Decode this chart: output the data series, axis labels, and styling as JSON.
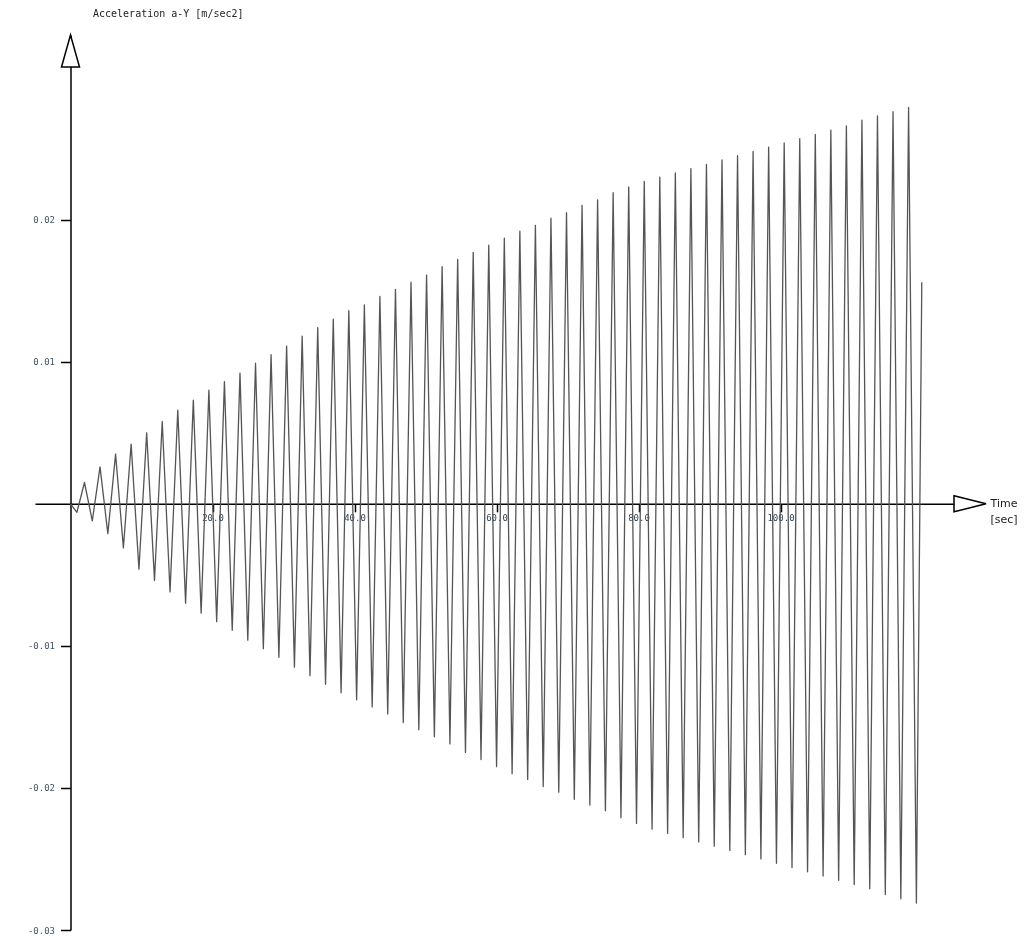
{
  "chart_data": {
    "type": "line",
    "xlabel": "Time [sec]",
    "ylabel": "Acceleration a-Y [m/sec2]",
    "color": "#555555",
    "xlim": [
      -5,
      125
    ],
    "ylim": [
      -0.03,
      0.033
    ],
    "xticks": [
      {
        "value": 20,
        "label": "20.0"
      },
      {
        "value": 40,
        "label": "40.0"
      },
      {
        "value": 60,
        "label": "60.0"
      },
      {
        "value": 80,
        "label": "80.0"
      },
      {
        "value": 100,
        "label": "100.0"
      }
    ],
    "yticks": [
      -0.03,
      -0.02,
      -0.01,
      0.01,
      0.02
    ],
    "x": [
      0,
      0.9,
      1.97,
      3.07,
      4.16,
      5.26,
      6.35,
      7.45,
      8.54,
      9.64,
      10.73,
      11.83,
      12.92,
      14.02,
      15.11,
      16.21,
      17.3,
      18.4,
      19.49,
      20.59,
      21.68,
      22.78,
      23.87,
      24.97,
      26.06,
      27.16,
      28.25,
      29.35,
      30.44,
      31.54,
      32.63,
      33.73,
      34.82,
      35.92,
      37.01,
      38.11,
      39.2,
      40.3,
      41.39,
      42.49,
      43.58,
      44.68,
      45.77,
      46.87,
      47.96,
      49.06,
      50.15,
      51.25,
      52.34,
      53.44,
      54.53,
      55.63,
      56.72,
      57.82,
      58.91,
      60.01,
      61.1,
      62.2,
      63.29,
      64.39,
      65.48,
      66.58,
      67.67,
      68.77,
      69.86,
      70.96,
      72.05,
      73.15,
      74.24,
      75.34,
      76.43,
      77.53,
      78.62,
      79.72,
      80.81,
      81.91,
      83.0,
      84.1,
      85.19,
      86.29,
      87.38,
      88.48,
      89.57,
      90.67,
      91.76,
      92.86,
      93.95,
      95.05,
      96.14,
      97.24,
      98.33,
      99.43,
      100.52,
      101.62,
      102.71,
      103.81,
      104.9,
      106.0,
      107.09,
      108.19,
      109.28,
      110.38,
      111.47,
      112.57,
      113.66,
      114.76,
      115.85,
      116.95,
      118.04,
      119.14,
      119.9
    ],
    "values": [
      0,
      -0.0006,
      0.0015,
      -0.0012,
      0.0026,
      -0.0021,
      0.0035,
      -0.0031,
      0.0042,
      -0.0046,
      0.005,
      -0.0054,
      0.0058,
      -0.0062,
      0.0066,
      -0.007,
      0.0073,
      -0.0077,
      0.008,
      -0.0083,
      0.0086,
      -0.0089,
      0.0092,
      -0.0096,
      0.0099,
      -0.0102,
      0.0105,
      -0.0108,
      0.0111,
      -0.0115,
      0.0118,
      -0.0121,
      0.0124,
      -0.0127,
      0.013,
      -0.0133,
      0.0136,
      -0.0138,
      0.014,
      -0.0143,
      0.0146,
      -0.0148,
      0.0151,
      -0.0154,
      0.0156,
      -0.0159,
      0.0161,
      -0.0164,
      0.0167,
      -0.0169,
      0.0172,
      -0.0175,
      0.0177,
      -0.018,
      0.0182,
      -0.0185,
      0.0187,
      -0.019,
      0.0192,
      -0.0194,
      0.0196,
      -0.0199,
      0.0201,
      -0.0203,
      0.0205,
      -0.0208,
      0.021,
      -0.0212,
      0.0214,
      -0.0216,
      0.0219,
      -0.0221,
      0.0223,
      -0.0225,
      0.0227,
      -0.0229,
      0.023,
      -0.0232,
      0.0233,
      -0.0235,
      0.0236,
      -0.0238,
      0.0239,
      -0.0241,
      0.0242,
      -0.0244,
      0.0245,
      -0.0247,
      0.0248,
      -0.025,
      0.0251,
      -0.0253,
      0.0254,
      -0.0256,
      0.0257,
      -0.0259,
      0.026,
      -0.0262,
      0.0263,
      -0.0265,
      0.0266,
      -0.0268,
      0.027,
      -0.0271,
      0.0273,
      -0.0275,
      0.0276,
      -0.0278,
      0.0279,
      -0.0281,
      0.0156
    ]
  }
}
